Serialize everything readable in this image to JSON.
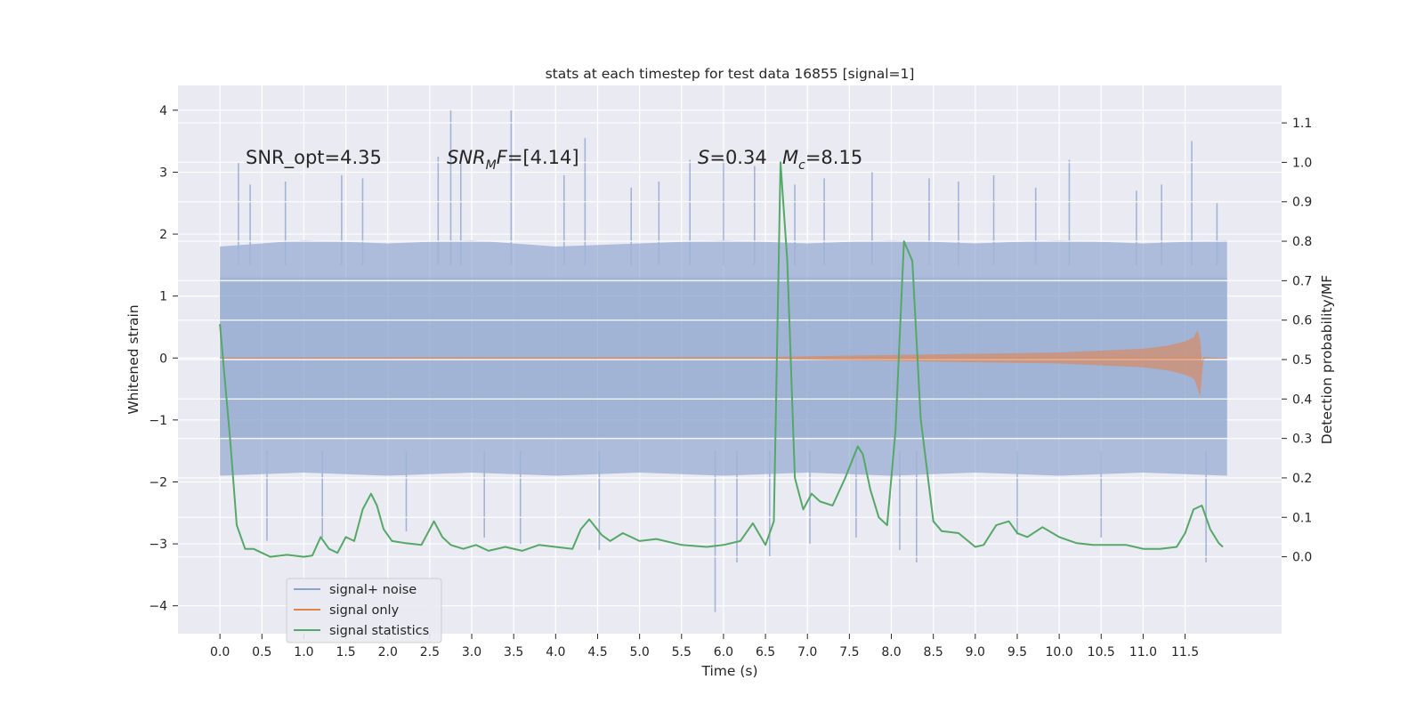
{
  "chart_data": {
    "type": "line",
    "title": "stats at each timestep for test data 16855 [signal=1]",
    "xlabel": "Time (s)",
    "ylabel": "Whitened strain",
    "y2label": "Detection probability/MF",
    "xlim": [
      -0.5,
      12.65
    ],
    "ylim": [
      -4.45,
      4.4
    ],
    "y2lim": [
      -0.195,
      1.195
    ],
    "xticks": [
      0.0,
      0.5,
      1.0,
      1.5,
      2.0,
      2.5,
      3.0,
      3.5,
      4.0,
      4.5,
      5.0,
      5.5,
      6.0,
      6.5,
      7.0,
      7.5,
      8.0,
      8.5,
      9.0,
      9.5,
      10.0,
      10.5,
      11.0,
      11.5
    ],
    "xtick_labels": [
      "0.0",
      "0.5",
      "1.0",
      "1.5",
      "2.0",
      "2.5",
      "3.0",
      "3.5",
      "4.0",
      "4.5",
      "5.0",
      "5.5",
      "6.0",
      "6.5",
      "7.0",
      "7.5",
      "8.0",
      "8.5",
      "9.0",
      "9.5",
      "10.0",
      "10.5",
      "11.0",
      "11.5"
    ],
    "yticks": [
      -4,
      -3,
      -2,
      -1,
      0,
      1,
      2,
      3,
      4
    ],
    "ytick_labels": [
      "−4",
      "−3",
      "−2",
      "−1",
      "0",
      "1",
      "2",
      "3",
      "4"
    ],
    "y2ticks": [
      0.0,
      0.1,
      0.2,
      0.3,
      0.4,
      0.5,
      0.6,
      0.7,
      0.8,
      0.9,
      1.0,
      1.1
    ],
    "y2tick_labels": [
      "0.0",
      "0.1",
      "0.2",
      "0.3",
      "0.4",
      "0.5",
      "0.6",
      "0.7",
      "0.8",
      "0.9",
      "1.0",
      "1.1"
    ],
    "grid": true,
    "legend_position": "lower-left",
    "annotations": {
      "snr_opt": "SNR_opt=4.35",
      "snr_mf_main": "SNR",
      "snr_mf_sub": "M",
      "snr_mf_rest": "F=[4.14]",
      "s_main": "S",
      "s_rest": "=0.34",
      "mc_main": "M",
      "mc_sub": "c",
      "mc_rest": "=8.15"
    },
    "noise_envelope": {
      "x": [
        0.0,
        1.0,
        2.0,
        3.0,
        4.0,
        5.0,
        6.0,
        7.0,
        8.0,
        9.0,
        10.0,
        11.0,
        12.0
      ],
      "upper": [
        1.8,
        1.9,
        1.85,
        1.9,
        1.8,
        1.85,
        1.9,
        1.85,
        1.9,
        1.85,
        1.9,
        1.85,
        1.9
      ],
      "lower": [
        -1.9,
        -1.85,
        -1.9,
        -1.85,
        -1.9,
        -1.85,
        -1.9,
        -1.85,
        -1.9,
        -1.85,
        -1.9,
        -1.85,
        -1.9
      ]
    },
    "noise_core": {
      "x": [
        0.0,
        12.0
      ],
      "upper": [
        1.3,
        1.3
      ],
      "lower": [
        -1.3,
        -1.3
      ]
    },
    "noise_spikes": {
      "t": [
        0.22,
        0.36,
        0.56,
        0.78,
        1.22,
        1.45,
        1.7,
        2.22,
        2.6,
        2.75,
        2.87,
        3.15,
        3.47,
        3.58,
        4.1,
        4.35,
        4.52,
        4.9,
        5.23,
        5.6,
        5.9,
        6.0,
        6.16,
        6.37,
        6.55,
        6.85,
        7.03,
        7.2,
        7.58,
        7.77,
        8.1,
        8.3,
        8.45,
        8.8,
        9.22,
        9.5,
        9.72,
        10.12,
        10.5,
        10.92,
        11.22,
        11.58,
        11.75,
        11.88
      ],
      "v": [
        3.15,
        2.8,
        -2.95,
        2.85,
        -2.9,
        2.95,
        2.9,
        -2.8,
        3.25,
        4.0,
        3.3,
        -2.9,
        4.0,
        -3.0,
        2.95,
        3.55,
        -3.1,
        2.75,
        2.85,
        3.2,
        -4.1,
        3.2,
        -3.3,
        3.1,
        -3.2,
        2.8,
        -3.0,
        2.9,
        -2.9,
        3.0,
        -3.1,
        -3.3,
        2.9,
        2.85,
        2.95,
        -2.85,
        2.75,
        3.2,
        -2.9,
        2.7,
        2.8,
        3.5,
        -3.3,
        2.5
      ]
    },
    "series": [
      {
        "name": "signal+ noise",
        "color": "#8aa2cc"
      },
      {
        "name": "signal only",
        "color": "#dd8452",
        "x": [
          0.0,
          6.5,
          7.5,
          8.5,
          9.5,
          10.0,
          10.5,
          11.0,
          11.3,
          11.5,
          11.6,
          11.62,
          11.65,
          11.68,
          11.7,
          11.72,
          11.75,
          12.0
        ],
        "upper": [
          0.01,
          0.015,
          0.04,
          0.06,
          0.08,
          0.09,
          0.12,
          0.15,
          0.2,
          0.27,
          0.33,
          0.38,
          0.45,
          0.3,
          -0.05,
          0.02,
          0.01,
          0.0
        ],
        "lower": [
          -0.01,
          -0.015,
          -0.04,
          -0.06,
          -0.08,
          -0.09,
          -0.12,
          -0.15,
          -0.2,
          -0.27,
          -0.33,
          -0.38,
          -0.5,
          -0.62,
          -0.3,
          -0.02,
          -0.01,
          0.0
        ]
      },
      {
        "name": "signal statistics",
        "color": "#55a868",
        "x": [
          0.0,
          0.12,
          0.2,
          0.3,
          0.4,
          0.5,
          0.6,
          0.8,
          1.0,
          1.1,
          1.2,
          1.3,
          1.4,
          1.5,
          1.6,
          1.7,
          1.8,
          1.87,
          1.95,
          2.05,
          2.2,
          2.4,
          2.55,
          2.65,
          2.75,
          2.9,
          3.05,
          3.2,
          3.4,
          3.6,
          3.8,
          4.0,
          4.2,
          4.3,
          4.4,
          4.55,
          4.65,
          4.8,
          5.0,
          5.2,
          5.5,
          5.8,
          6.0,
          6.2,
          6.35,
          6.5,
          6.6,
          6.68,
          6.76,
          6.85,
          6.95,
          7.05,
          7.15,
          7.3,
          7.45,
          7.6,
          7.66,
          7.75,
          7.85,
          7.95,
          8.05,
          8.15,
          8.25,
          8.35,
          8.5,
          8.6,
          8.8,
          9.0,
          9.1,
          9.25,
          9.4,
          9.5,
          9.62,
          9.8,
          10.0,
          10.2,
          10.4,
          10.6,
          10.8,
          11.0,
          11.2,
          11.4,
          11.5,
          11.6,
          11.7,
          11.8,
          11.9,
          11.95
        ],
        "y": [
          0.59,
          0.3,
          0.08,
          0.02,
          0.02,
          0.01,
          0.0,
          0.005,
          0.0,
          0.003,
          0.05,
          0.02,
          0.01,
          0.05,
          0.04,
          0.12,
          0.16,
          0.13,
          0.07,
          0.04,
          0.035,
          0.03,
          0.09,
          0.05,
          0.03,
          0.02,
          0.03,
          0.015,
          0.025,
          0.015,
          0.03,
          0.025,
          0.02,
          0.07,
          0.095,
          0.055,
          0.04,
          0.06,
          0.04,
          0.045,
          0.03,
          0.025,
          0.03,
          0.04,
          0.085,
          0.03,
          0.09,
          1.0,
          0.75,
          0.2,
          0.12,
          0.16,
          0.14,
          0.13,
          0.2,
          0.28,
          0.26,
          0.17,
          0.1,
          0.08,
          0.32,
          0.8,
          0.75,
          0.35,
          0.09,
          0.065,
          0.06,
          0.025,
          0.03,
          0.08,
          0.09,
          0.06,
          0.05,
          0.075,
          0.05,
          0.035,
          0.03,
          0.03,
          0.03,
          0.02,
          0.02,
          0.025,
          0.06,
          0.12,
          0.13,
          0.07,
          0.035,
          0.025
        ]
      }
    ]
  }
}
